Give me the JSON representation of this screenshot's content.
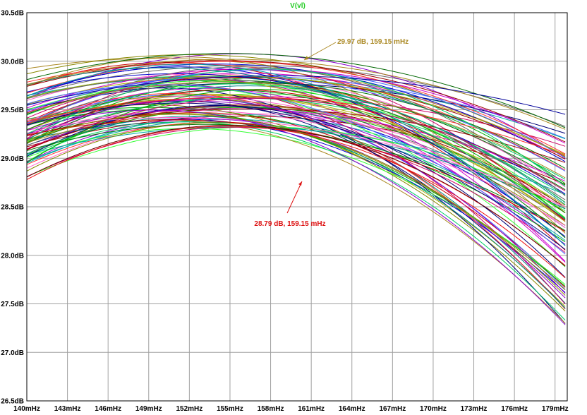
{
  "chart_data": {
    "type": "line",
    "title": "V(vl)",
    "title_color": "#22cc22",
    "xlabel": "",
    "ylabel": "",
    "x_ticks": [
      "140mHz",
      "143mHz",
      "146mHz",
      "149mHz",
      "152mHz",
      "155mHz",
      "158mHz",
      "161mHz",
      "164mHz",
      "167mHz",
      "170mHz",
      "173mHz",
      "176mHz",
      "179mHz"
    ],
    "y_ticks": [
      "26.5dB",
      "27.0dB",
      "27.5dB",
      "28.0dB",
      "28.5dB",
      "29.0dB",
      "29.5dB",
      "30.0dB",
      "30.5dB"
    ],
    "xlim": [
      140,
      179.9
    ],
    "ylim": [
      26.5,
      30.5
    ],
    "x_unit": "mHz",
    "y_unit": "dB",
    "grid": true,
    "curve_family": {
      "count": 100,
      "model": "parabolic roll-off in dB around a peak",
      "peak_freq_range_mHz": [
        149,
        157.5
      ],
      "peak_gain_range_dB": [
        29.3,
        30.08
      ],
      "curvature_range_dB_per_mHz2": [
        0.00095,
        0.0028
      ],
      "colors": [
        "#0000cc",
        "#00aa00",
        "#cc0000",
        "#cc00cc",
        "#00aaaa",
        "#aaaa00",
        "#666666",
        "#ff66cc",
        "#000077",
        "#007700",
        "#990000",
        "#8800cc",
        "#33ff33",
        "#008888",
        "#aa8822",
        "#4466ff",
        "#ff3333",
        "#00cc66",
        "#888800",
        "#cc0066"
      ]
    },
    "annotations": [
      {
        "text": "29.97 dB, 159.15 mHz",
        "x": 159.15,
        "y": 29.97,
        "color": "#aa8822"
      },
      {
        "text": "28.79 dB, 159.15 mHz",
        "x": 159.15,
        "y": 28.79,
        "color": "#dd1111"
      }
    ],
    "highlight_series": [
      {
        "peak_x": 154.8,
        "peak_y": 30.08,
        "curvature": 0.00123,
        "color": "#006600"
      },
      {
        "peak_x": 154.9,
        "peak_y": 30.02,
        "curvature": 0.00117,
        "color": "#aa8822"
      },
      {
        "peak_x": 154.8,
        "peak_y": 29.33,
        "curvature": 0.00251,
        "color": "#ee1111"
      },
      {
        "peak_x": 155.0,
        "peak_y": 29.34,
        "curvature": 0.00237,
        "color": "#660000"
      },
      {
        "peak_x": 158.5,
        "peak_y": 29.85,
        "curvature": 0.00088,
        "color": "#000099"
      }
    ]
  }
}
